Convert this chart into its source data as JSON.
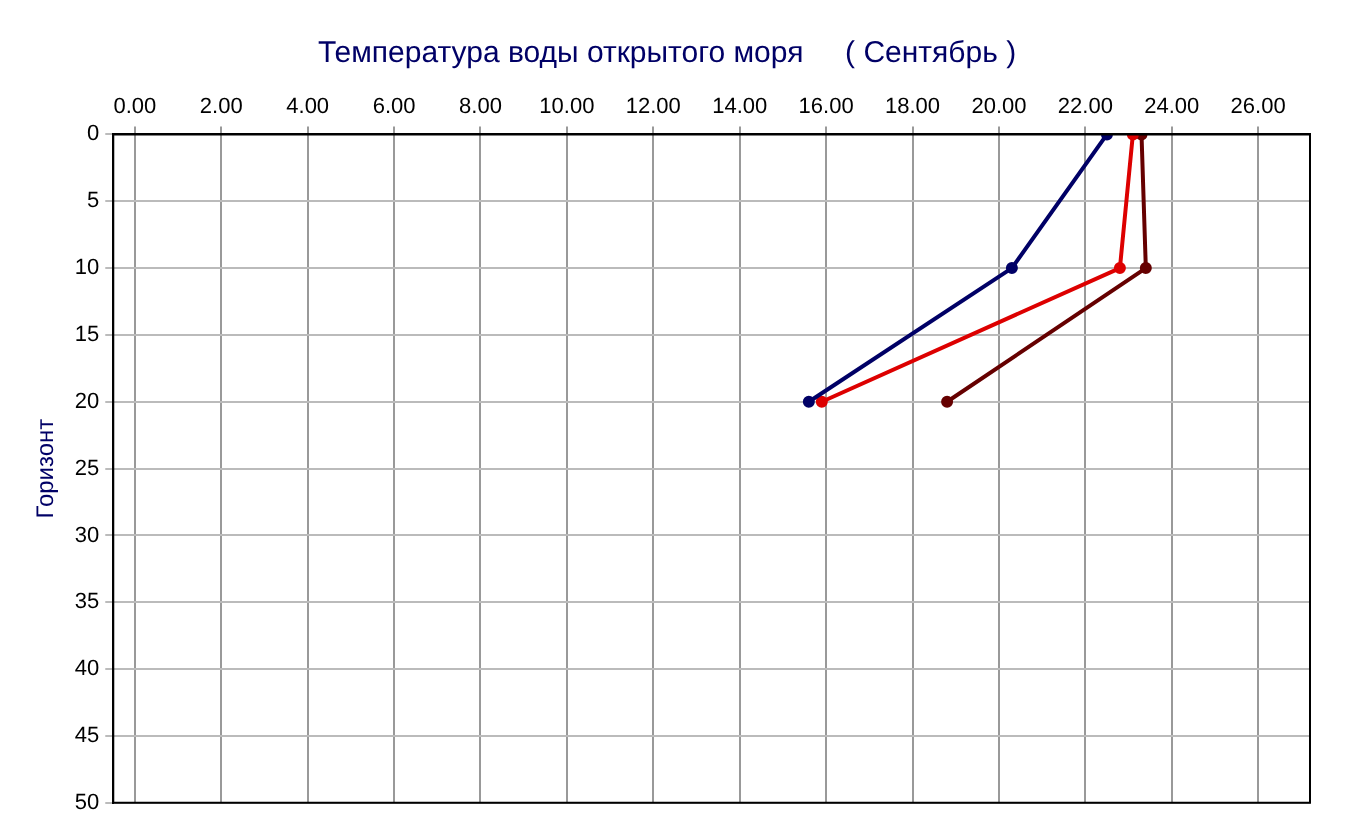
{
  "chart_data": {
    "type": "line",
    "title": "Температура воды открытого моря     ( Сентябрь )",
    "ylabel": "Горизонт",
    "series": [
      {
        "color": "#000066",
        "x": [
          22.5,
          20.3,
          15.6
        ],
        "values": [
          0,
          10,
          20
        ]
      },
      {
        "color": "#dd0000",
        "x": [
          23.1,
          22.8,
          15.9
        ],
        "values": [
          0,
          10,
          20
        ]
      },
      {
        "color": "#660000",
        "x": [
          23.3,
          23.4,
          18.8
        ],
        "values": [
          0,
          10,
          20
        ]
      }
    ],
    "xlim": [
      -0.5,
      27.2
    ],
    "xticks": [
      {
        "value": 0,
        "label": "0.00"
      },
      {
        "value": 2,
        "label": "2.00"
      },
      {
        "value": 4,
        "label": "4.00"
      },
      {
        "value": 6,
        "label": "6.00"
      },
      {
        "value": 8,
        "label": "8.00"
      },
      {
        "value": 10,
        "label": "10.00"
      },
      {
        "value": 12,
        "label": "12.00"
      },
      {
        "value": 14,
        "label": "14.00"
      },
      {
        "value": 16,
        "label": "16.00"
      },
      {
        "value": 18,
        "label": "18.00"
      },
      {
        "value": 20,
        "label": "20.00"
      },
      {
        "value": 22,
        "label": "22.00"
      },
      {
        "value": 24,
        "label": "24.00"
      },
      {
        "value": 26,
        "label": "26.00"
      }
    ],
    "ylim": [
      50,
      0
    ],
    "yticks": [
      0,
      5,
      10,
      15,
      20,
      25,
      30,
      35,
      40,
      45,
      50
    ],
    "grid": true,
    "legend": false,
    "marker": "circle",
    "line_style": "solid"
  }
}
